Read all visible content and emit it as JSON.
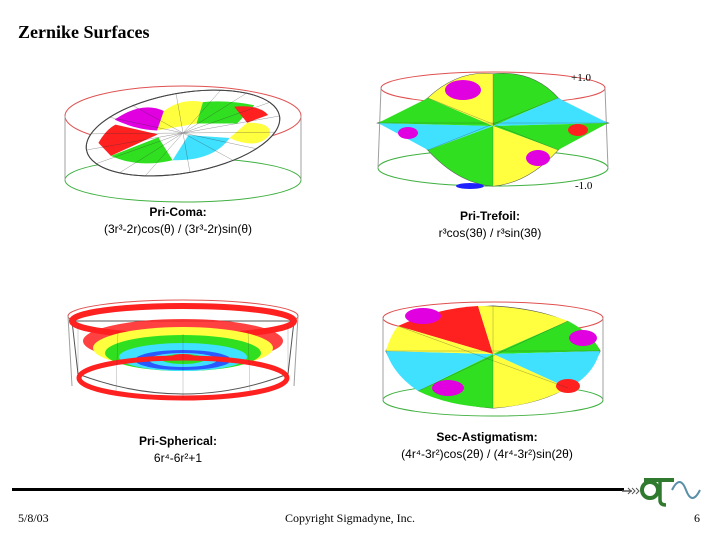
{
  "slide": {
    "title": "Zernike Surfaces",
    "date": "5/8/03",
    "copyright": "Copyright Sigmadyne, Inc.",
    "page_number": "6"
  },
  "scale": {
    "max": "+1.0",
    "min": "-1.0"
  },
  "plots": [
    {
      "name": "Pri-Coma:",
      "formula": "(3r³-2r)cos(θ) / (3r³-2r)sin(θ)"
    },
    {
      "name": "Pri-Trefoil:",
      "formula": "r³cos(3θ) / r³sin(3θ)"
    },
    {
      "name": "Pri-Spherical:",
      "formula": "6r⁴-6r²+1"
    },
    {
      "name": "Sec-Astigmatism:",
      "formula": "(4r⁴-3r²)cos(2θ) / (4r⁴-3r²)sin(2θ)"
    }
  ],
  "colors": {
    "red": "#ff2020",
    "magenta": "#e000e0",
    "yellow": "#ffff40",
    "green": "#30e020",
    "cyan": "#40e0ff",
    "blue": "#2020ff",
    "frame_red": "#e05050",
    "frame_green": "#40b040",
    "frame_gray": "#a0a0a0"
  }
}
